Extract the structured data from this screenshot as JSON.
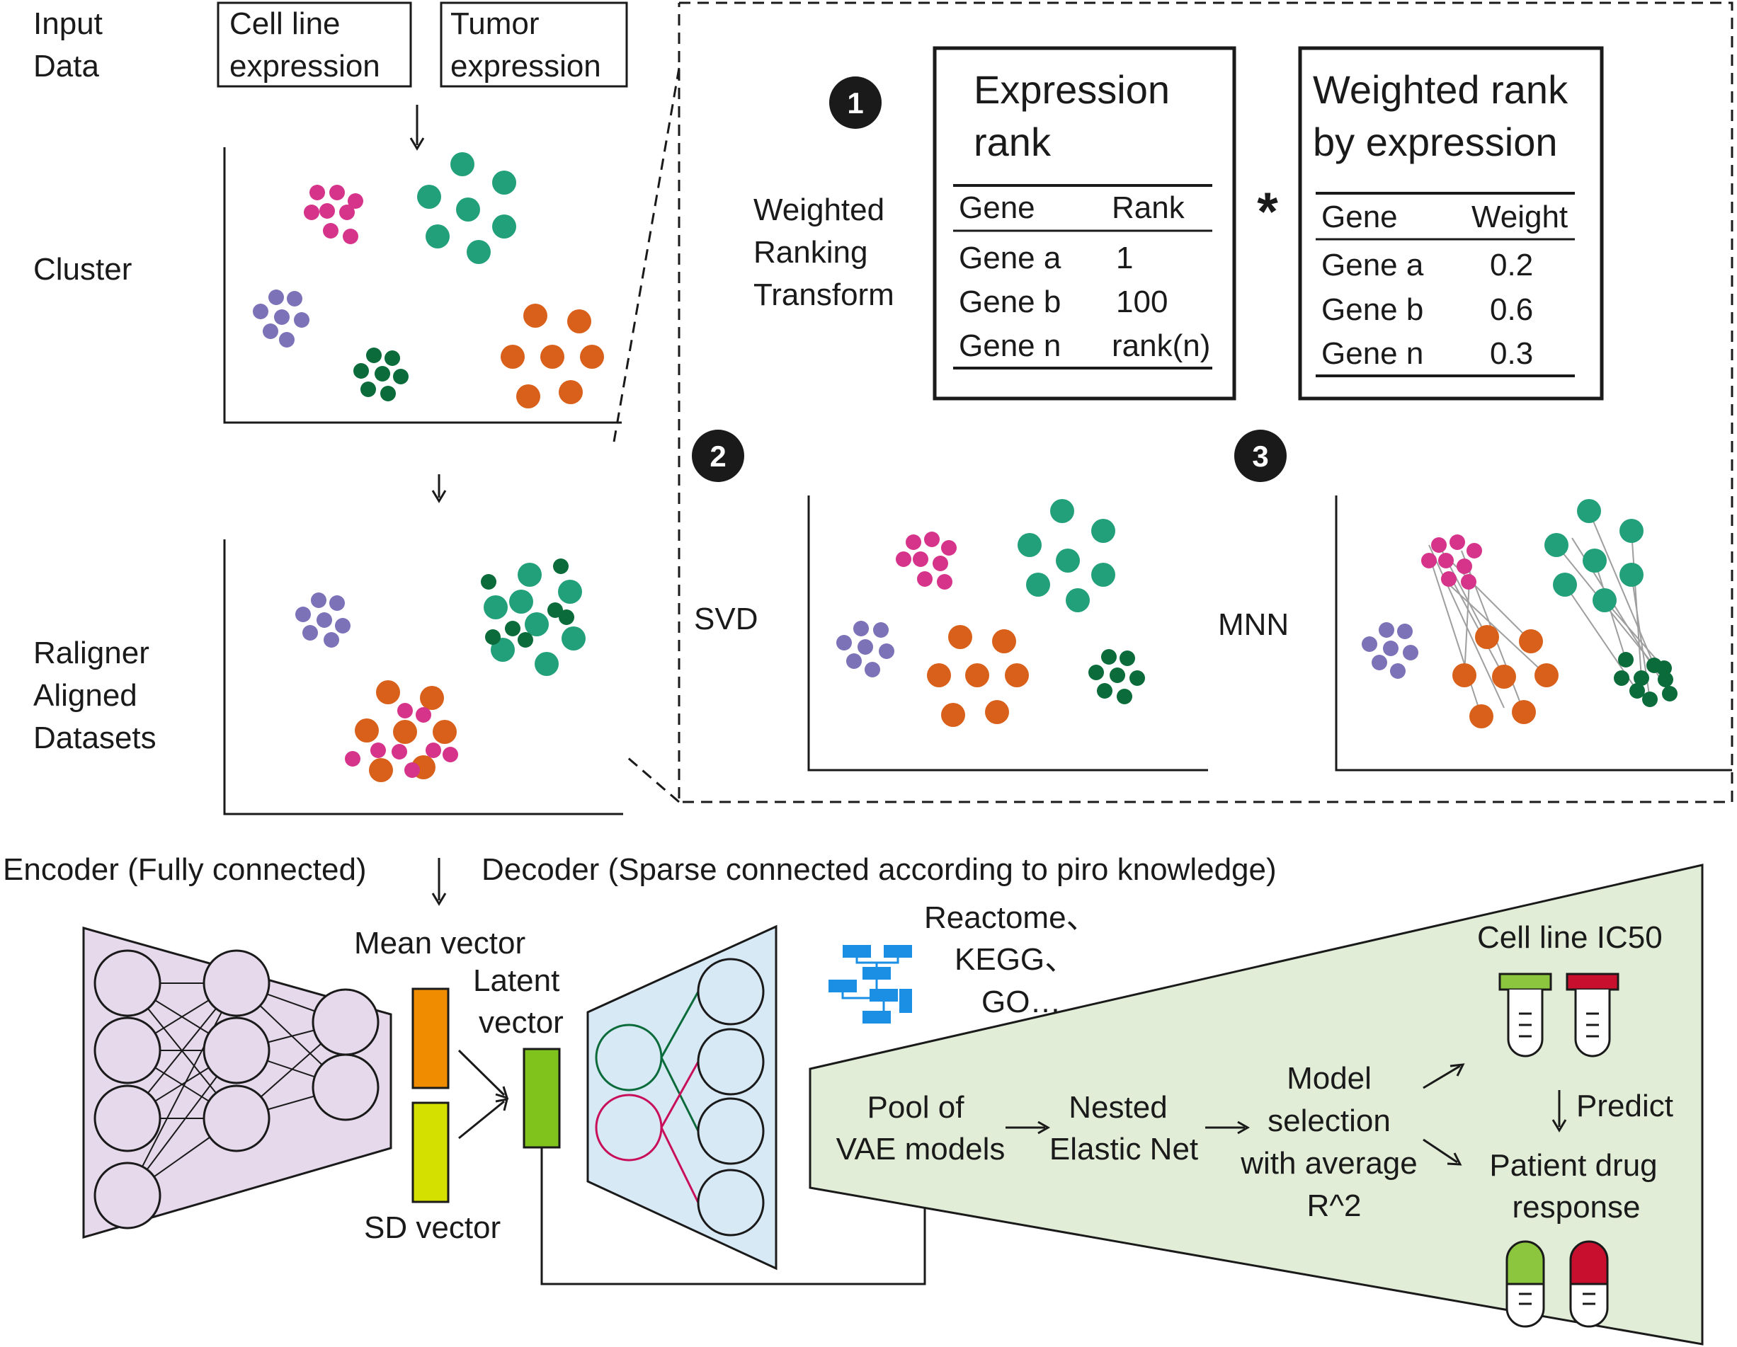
{
  "colors": {
    "magenta": "#d6338a",
    "teal": "#22a07a",
    "purple": "#7b72b8",
    "dark_green": "#0b6b3a",
    "orange": "#d9601a",
    "mean_vector": "#f08c00",
    "sd_vector": "#d4e000",
    "latent_vector": "#7fc31c",
    "encoder_fill": "#e6d9ec",
    "decoder_fill": "#d8e9f6",
    "predict_fill": "#e1edd6",
    "red": "#c8102e",
    "lime": "#8cc63f",
    "db_blue": "#1a8fe3"
  },
  "input": {
    "label_line1": "Input",
    "label_line2": "Data",
    "box1_line1": "Cell line",
    "box1_line2": "expression",
    "box2_line1": "Tumor",
    "box2_line2": "expression"
  },
  "cluster_label": "Cluster",
  "aligned": {
    "line1": "Raligner",
    "line2": "Aligned",
    "line3": "Datasets"
  },
  "steps": {
    "step1_num": "1",
    "step2_num": "2",
    "step3_num": "3",
    "wrt_line1": "Weighted",
    "wrt_line2": "Ranking",
    "wrt_line3": "Transform",
    "svd_label": "SVD",
    "mnn_label": "MNN",
    "multiply": "*"
  },
  "expression_rank": {
    "title_line1": "Expression",
    "title_line2": "rank",
    "col1": "Gene",
    "col2": "Rank",
    "rows": [
      {
        "gene": "Gene a",
        "value": "1"
      },
      {
        "gene": "Gene b",
        "value": "100"
      },
      {
        "gene": "Gene n",
        "value": "rank(n)"
      }
    ]
  },
  "weighted_rank": {
    "title_line1": "Weighted rank",
    "title_line2": "by expression",
    "col1": "Gene",
    "col2": "Weight",
    "rows": [
      {
        "gene": "Gene a",
        "value": "0.2"
      },
      {
        "gene": "Gene b",
        "value": "0.6"
      },
      {
        "gene": "Gene n",
        "value": "0.3"
      }
    ]
  },
  "vae": {
    "encoder_label": "Encoder (Fully connected)",
    "decoder_label": "Decoder (Sparse connected according to piro knowledge)",
    "mean_vector": "Mean vector",
    "latent_line1": "Latent",
    "latent_line2": "vector",
    "sd_vector": "SD vector",
    "db_line1": "Reactome、",
    "db_line2": "KEGG、",
    "db_line3": "GO…"
  },
  "pipeline": {
    "pool_line1": "Pool of",
    "pool_line2": "VAE models",
    "nested_line1": "Nested",
    "nested_line2": "Elastic Net",
    "model_line1": "Model",
    "model_line2": "selection",
    "model_line3": "with average",
    "model_line4": "R^2",
    "ic50": "Cell line IC50",
    "predict": "Predict",
    "patient_line1": "Patient drug",
    "patient_line2": "response"
  }
}
